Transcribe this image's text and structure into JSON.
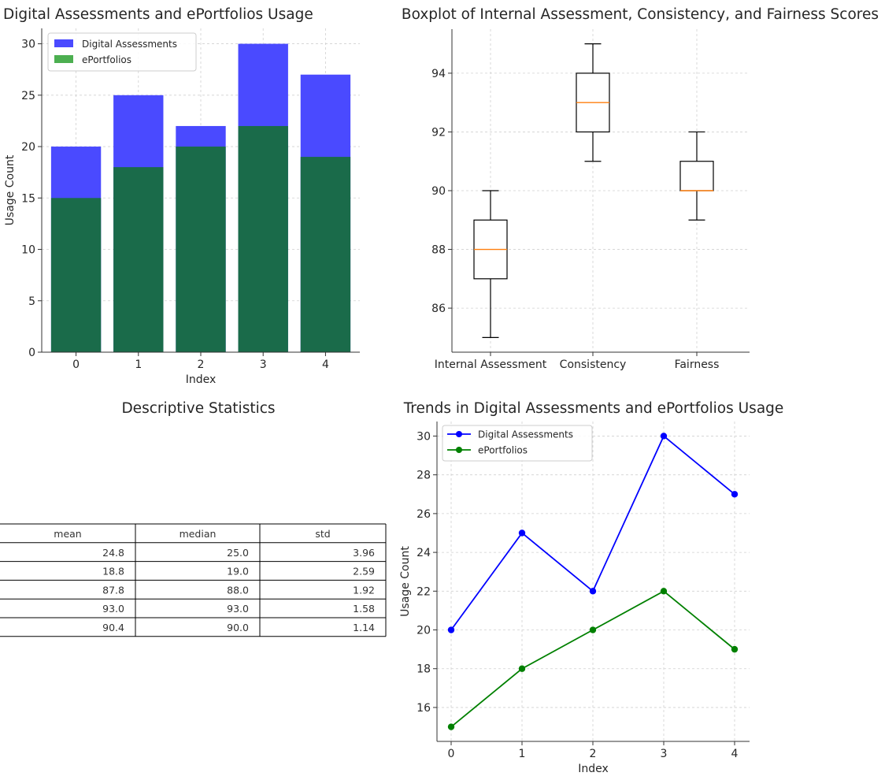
{
  "chart_data": [
    {
      "type": "bar",
      "title": "Digital Assessments and ePortfolios Usage",
      "xlabel": "Index",
      "ylabel": "Usage Count",
      "categories": [
        "0",
        "1",
        "2",
        "3",
        "4"
      ],
      "yticks": [
        0,
        5,
        10,
        15,
        20,
        25,
        30
      ],
      "ylim": [
        0,
        31.5
      ],
      "grid": true,
      "legend": "top-left",
      "series": [
        {
          "name": "Digital Assessments",
          "values": [
            20,
            25,
            22,
            30,
            27
          ],
          "color": "#4a4aff"
        },
        {
          "name": "ePortfolios",
          "values": [
            15,
            18,
            20,
            22,
            19
          ],
          "color": "#1a6b4a",
          "legend_color": "#4caf50"
        }
      ]
    },
    {
      "type": "box",
      "title": "Boxplot of Internal Assessment, Consistency, and Fairness Scores",
      "categories": [
        "Internal Assessment",
        "Consistency",
        "Fairness"
      ],
      "boxes": [
        {
          "min": 85,
          "q1": 87,
          "median": 88,
          "q3": 89,
          "max": 90
        },
        {
          "min": 91,
          "q1": 92,
          "median": 93,
          "q3": 94,
          "max": 95
        },
        {
          "min": 89,
          "q1": 90,
          "median": 90,
          "q3": 91,
          "max": 92
        }
      ],
      "yticks": [
        86,
        88,
        90,
        92,
        94
      ],
      "ylim": [
        84.5,
        95.5
      ],
      "grid": true,
      "median_color": "#ff7f0e"
    },
    {
      "type": "table",
      "title": "Descriptive Statistics",
      "columns": [
        "mean",
        "median",
        "std"
      ],
      "rows": [
        [
          "24.8",
          "25.0",
          "3.96"
        ],
        [
          "18.8",
          "19.0",
          "2.59"
        ],
        [
          "87.8",
          "88.0",
          "1.92"
        ],
        [
          "93.0",
          "93.0",
          "1.58"
        ],
        [
          "90.4",
          "90.0",
          "1.14"
        ]
      ]
    },
    {
      "type": "line",
      "title": "Trends in Digital Assessments and ePortfolios Usage",
      "xlabel": "Index",
      "ylabel": "Usage Count",
      "x": [
        0,
        1,
        2,
        3,
        4
      ],
      "yticks": [
        16,
        18,
        20,
        22,
        24,
        26,
        28,
        30
      ],
      "ylim": [
        14.25,
        30.75
      ],
      "grid": true,
      "legend": "top-left",
      "series": [
        {
          "name": "Digital Assessments",
          "values": [
            20,
            25,
            22,
            30,
            27
          ],
          "color": "#0000ff"
        },
        {
          "name": "ePortfolios",
          "values": [
            15,
            18,
            20,
            22,
            19
          ],
          "color": "#008000"
        }
      ]
    }
  ]
}
